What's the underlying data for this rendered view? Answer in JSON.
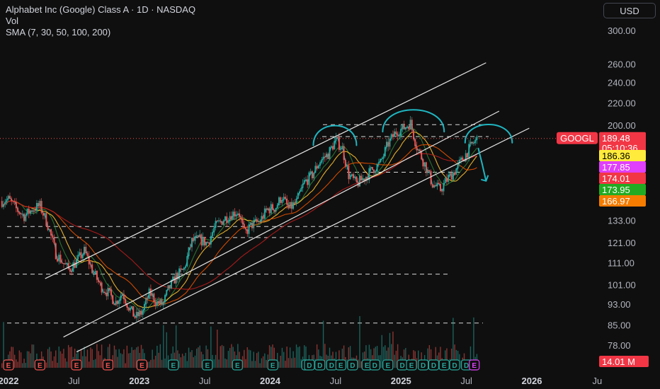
{
  "header": {
    "title": "Alphabet Inc (Google) Class A · 1D · NASDAQ",
    "vol": "Vol",
    "sma": "SMA (7, 30, 50, 100, 200)"
  },
  "currency_label": "USD",
  "colors": {
    "background": "#0f0f0f",
    "up": "#26a69a",
    "down": "#ef5350",
    "annotation": "#1fb5c0",
    "channel": "#e6e6e6",
    "sma7": "#26c6da",
    "sma30": "#2e7d32",
    "sma50": "#fbc02d",
    "sma100": "#e65100",
    "sma200": "#b71c1c"
  },
  "chart_data": {
    "type": "candlestick",
    "symbol": "GOOGL",
    "yscale": "log",
    "y_ticks": [
      78,
      85,
      93,
      101,
      111,
      121,
      133,
      200,
      220,
      240,
      260,
      300
    ],
    "y_tick_labels": [
      "78.00",
      "85.00",
      "93.00",
      "101.00",
      "111.00",
      "121.00",
      "133.00",
      "200.00",
      "220.00",
      "240.00",
      "260.00",
      "300.00"
    ],
    "x_ticks": [
      {
        "label": "2022",
        "t": 2022.0,
        "bold": true
      },
      {
        "label": "Jul",
        "t": 2022.5,
        "bold": false
      },
      {
        "label": "2023",
        "t": 2023.0,
        "bold": true
      },
      {
        "label": "Jul",
        "t": 2023.5,
        "bold": false
      },
      {
        "label": "2024",
        "t": 2024.0,
        "bold": true
      },
      {
        "label": "Jul",
        "t": 2024.5,
        "bold": false
      },
      {
        "label": "2025",
        "t": 2025.0,
        "bold": true
      },
      {
        "label": "Jul",
        "t": 2025.5,
        "bold": false
      },
      {
        "label": "2026",
        "t": 2026.0,
        "bold": true
      },
      {
        "label": "Ju",
        "t": 2026.5,
        "bold": false
      }
    ],
    "last_price": {
      "label": "GOOGL",
      "value": "189.48",
      "countdown": "05:10:36"
    },
    "sma_labels": [
      {
        "value": "186.36",
        "bg": "#ffeb3b",
        "fg": "#000000"
      },
      {
        "value": "177.85",
        "bg": "#e040fb",
        "fg": "#ffffff"
      },
      {
        "value": "174.01",
        "bg": "#f23645",
        "fg": "#ffffff"
      },
      {
        "value": "173.95",
        "bg": "#22ab22",
        "fg": "#ffffff"
      },
      {
        "value": "166.97",
        "bg": "#f57c00",
        "fg": "#ffffff"
      }
    ],
    "volume_label": "14.01 M",
    "horizontal_levels": [
      201,
      191,
      164,
      130,
      124,
      106,
      86
    ],
    "channels": [
      {
        "t1": 2022.28,
        "p1": 104,
        "t2": 2025.65,
        "p2": 262
      },
      {
        "t1": 2022.42,
        "p1": 81,
        "t2": 2025.75,
        "p2": 213
      },
      {
        "t1": 2022.52,
        "p1": 76,
        "t2": 2025.98,
        "p2": 198
      }
    ],
    "price_path": [
      [
        2021.95,
        145
      ],
      [
        2022.0,
        146
      ],
      [
        2022.06,
        140
      ],
      [
        2022.12,
        136
      ],
      [
        2022.18,
        140
      ],
      [
        2022.24,
        142
      ],
      [
        2022.3,
        131
      ],
      [
        2022.36,
        116
      ],
      [
        2022.42,
        111
      ],
      [
        2022.46,
        108
      ],
      [
        2022.52,
        112
      ],
      [
        2022.58,
        117
      ],
      [
        2022.64,
        108
      ],
      [
        2022.7,
        101
      ],
      [
        2022.76,
        98
      ],
      [
        2022.82,
        94
      ],
      [
        2022.87,
        98
      ],
      [
        2022.92,
        92
      ],
      [
        2022.97,
        88
      ],
      [
        2023.02,
        90
      ],
      [
        2023.08,
        98
      ],
      [
        2023.13,
        94
      ],
      [
        2023.18,
        93
      ],
      [
        2023.22,
        99
      ],
      [
        2023.28,
        105
      ],
      [
        2023.34,
        108
      ],
      [
        2023.4,
        122
      ],
      [
        2023.46,
        123
      ],
      [
        2023.52,
        121
      ],
      [
        2023.58,
        130
      ],
      [
        2023.64,
        134
      ],
      [
        2023.7,
        137
      ],
      [
        2023.76,
        139
      ],
      [
        2023.8,
        126
      ],
      [
        2023.86,
        131
      ],
      [
        2023.92,
        133
      ],
      [
        2023.98,
        140
      ],
      [
        2024.04,
        141
      ],
      [
        2024.09,
        148
      ],
      [
        2024.14,
        140
      ],
      [
        2024.2,
        144
      ],
      [
        2024.26,
        157
      ],
      [
        2024.32,
        162
      ],
      [
        2024.38,
        172
      ],
      [
        2024.44,
        177
      ],
      [
        2024.5,
        188
      ],
      [
        2024.55,
        182
      ],
      [
        2024.6,
        162
      ],
      [
        2024.66,
        156
      ],
      [
        2024.72,
        160
      ],
      [
        2024.78,
        166
      ],
      [
        2024.84,
        170
      ],
      [
        2024.9,
        185
      ],
      [
        2024.96,
        195
      ],
      [
        2025.02,
        198
      ],
      [
        2025.07,
        203
      ],
      [
        2025.12,
        183
      ],
      [
        2025.18,
        170
      ],
      [
        2025.24,
        156
      ],
      [
        2025.3,
        152
      ],
      [
        2025.36,
        160
      ],
      [
        2025.42,
        166
      ],
      [
        2025.46,
        172
      ],
      [
        2025.5,
        178
      ],
      [
        2025.54,
        184
      ],
      [
        2025.58,
        189
      ]
    ],
    "annotations": [
      {
        "type": "arc",
        "t1": 2024.33,
        "t2": 2024.66,
        "top": 200,
        "base": 184
      },
      {
        "type": "arc",
        "t1": 2024.86,
        "t2": 2025.33,
        "top": 214,
        "base": 195
      },
      {
        "type": "arc",
        "t1": 2025.49,
        "t2": 2025.85,
        "top": 201,
        "base": 186
      },
      {
        "type": "arrow",
        "t1": 2025.59,
        "p1": 182,
        "t2": 2025.65,
        "p2": 158
      }
    ],
    "earnings_markers": [
      {
        "t": 2022.0,
        "kind": "E",
        "color": "#ef5350"
      },
      {
        "t": 2022.24,
        "kind": "E",
        "color": "#ef5350"
      },
      {
        "t": 2022.52,
        "kind": "E",
        "color": "#ef5350"
      },
      {
        "t": 2022.76,
        "kind": "E",
        "color": "#ef5350"
      },
      {
        "t": 2023.02,
        "kind": "E",
        "color": "#ef5350"
      },
      {
        "t": 2023.26,
        "kind": "E",
        "color": "#26a69a"
      },
      {
        "t": 2023.52,
        "kind": "E",
        "color": "#26a69a"
      },
      {
        "t": 2023.75,
        "kind": "E",
        "color": "#26a69a"
      },
      {
        "t": 2024.02,
        "kind": "E",
        "color": "#26a69a"
      },
      {
        "t": 2024.28,
        "kind": "E",
        "color": "#26a69a"
      },
      {
        "t": 2024.3,
        "kind": "D",
        "color": "#26a69a"
      },
      {
        "t": 2024.38,
        "kind": "D",
        "color": "#26a69a"
      },
      {
        "t": 2024.47,
        "kind": "D",
        "color": "#26a69a"
      },
      {
        "t": 2024.54,
        "kind": "E",
        "color": "#26a69a"
      },
      {
        "t": 2024.63,
        "kind": "D",
        "color": "#26a69a"
      },
      {
        "t": 2024.74,
        "kind": "E",
        "color": "#26a69a"
      },
      {
        "t": 2024.8,
        "kind": "D",
        "color": "#26a69a"
      },
      {
        "t": 2024.9,
        "kind": "E",
        "color": "#26a69a"
      },
      {
        "t": 2025.01,
        "kind": "D",
        "color": "#26a69a"
      },
      {
        "t": 2025.08,
        "kind": "E",
        "color": "#26a69a"
      },
      {
        "t": 2025.17,
        "kind": "D",
        "color": "#26a69a"
      },
      {
        "t": 2025.25,
        "kind": "D",
        "color": "#26a69a"
      },
      {
        "t": 2025.33,
        "kind": "E",
        "color": "#26a69a"
      },
      {
        "t": 2025.41,
        "kind": "D",
        "color": "#26a69a"
      },
      {
        "t": 2025.5,
        "kind": "D",
        "color": "#26a69a"
      },
      {
        "t": 2025.56,
        "kind": "E",
        "color": "#e040fb"
      }
    ]
  }
}
